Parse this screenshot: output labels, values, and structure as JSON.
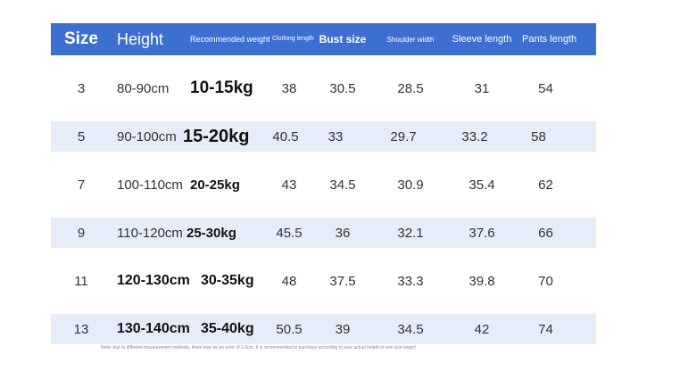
{
  "headers": {
    "size": "Size",
    "height": "Height",
    "weight": "Recommended weight",
    "clothing": "Clothing length",
    "bust": "Bust size",
    "shoulder": "Shoulder width",
    "sleeve": "Sleeve length",
    "pants": "Pants length"
  },
  "rows": [
    {
      "size": "3",
      "height": "80-90cm",
      "weight": "10-15kg",
      "clothing": "38",
      "bust": "30.5",
      "shoulder": "28.5",
      "sleeve": "31",
      "pants": "54"
    },
    {
      "size": "5",
      "height": "90-100cm",
      "weight": "15-20kg",
      "clothing": "40.5",
      "bust": "33",
      "shoulder": "29.7",
      "sleeve": "33.2",
      "pants": "58"
    },
    {
      "size": "7",
      "height": "100-110cm",
      "weight": "20-25kg",
      "clothing": "43",
      "bust": "34.5",
      "shoulder": "30.9",
      "sleeve": "35.4",
      "pants": "62"
    },
    {
      "size": "9",
      "height": "110-120cm",
      "weight": "25-30kg",
      "clothing": "45.5",
      "bust": "36",
      "shoulder": "32.1",
      "sleeve": "37.6",
      "pants": "66"
    },
    {
      "size": "11",
      "height": "120-130cm",
      "weight": "30-35kg",
      "clothing": "48",
      "bust": "37.5",
      "shoulder": "33.3",
      "sleeve": "39.8",
      "pants": "70"
    },
    {
      "size": "13",
      "height": "130-140cm",
      "weight": "35-40kg",
      "clothing": "50.5",
      "bust": "39",
      "shoulder": "34.5",
      "sleeve": "42",
      "pants": "74"
    }
  ],
  "note": "Note: due to different measurement methods, there may be an error of 1-3cm. It is recommended to purchase according to your actual height or one size larger!",
  "colors": {
    "header_bg": "#3d6fd3",
    "row_shade": "#e6ecfa"
  }
}
